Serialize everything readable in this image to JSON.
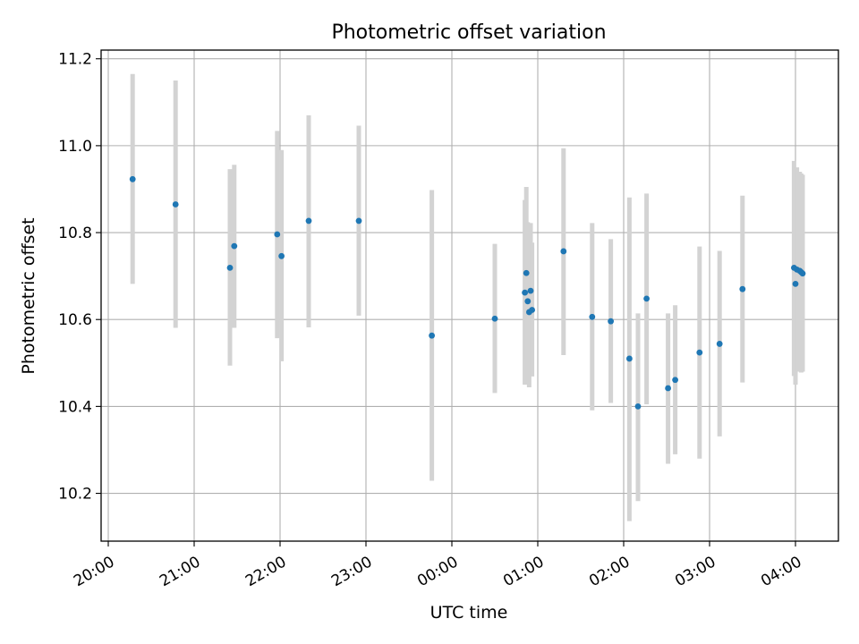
{
  "chart_data": {
    "type": "scatter",
    "title": "Photometric offset variation",
    "xlabel": "UTC time",
    "ylabel": "Photometric offset",
    "x_unit": "UTC time (HH:MM), night spanning midnight",
    "xlim": [
      "19:55",
      "04:30"
    ],
    "ylim": [
      10.09,
      11.22
    ],
    "grid": true,
    "x_ticks": [
      "20:00",
      "21:00",
      "22:00",
      "23:00",
      "00:00",
      "01:00",
      "02:00",
      "03:00",
      "04:00"
    ],
    "y_ticks": [
      "10.2",
      "10.4",
      "10.6",
      "10.8",
      "11.0",
      "11.2"
    ],
    "colors": {
      "point": "#1f77b4",
      "errorbar": "#d3d3d3",
      "grid": "#b0b0b0",
      "axes": "#000000"
    },
    "points": [
      {
        "time": "20:17",
        "y": 10.923,
        "ylow": 10.682,
        "yhigh": 11.165
      },
      {
        "time": "20:47",
        "y": 10.865,
        "ylow": 10.581,
        "yhigh": 11.15
      },
      {
        "time": "21:25",
        "y": 10.719,
        "ylow": 10.494,
        "yhigh": 10.946
      },
      {
        "time": "21:28",
        "y": 10.769,
        "ylow": 10.581,
        "yhigh": 10.956
      },
      {
        "time": "21:58",
        "y": 10.796,
        "ylow": 10.557,
        "yhigh": 11.034
      },
      {
        "time": "22:01",
        "y": 10.746,
        "ylow": 10.504,
        "yhigh": 10.99
      },
      {
        "time": "22:20",
        "y": 10.827,
        "ylow": 10.582,
        "yhigh": 11.07
      },
      {
        "time": "22:55",
        "y": 10.827,
        "ylow": 10.609,
        "yhigh": 11.046
      },
      {
        "time": "23:46",
        "y": 10.563,
        "ylow": 10.229,
        "yhigh": 10.898
      },
      {
        "time": "00:30",
        "y": 10.602,
        "ylow": 10.431,
        "yhigh": 10.774
      },
      {
        "time": "00:51",
        "y": 10.662,
        "ylow": 10.45,
        "yhigh": 10.875
      },
      {
        "time": "00:52",
        "y": 10.707,
        "ylow": 10.508,
        "yhigh": 10.905
      },
      {
        "time": "00:53",
        "y": 10.642,
        "ylow": 10.46,
        "yhigh": 10.824
      },
      {
        "time": "00:54",
        "y": 10.617,
        "ylow": 10.444,
        "yhigh": 10.79
      },
      {
        "time": "00:55",
        "y": 10.666,
        "ylow": 10.51,
        "yhigh": 10.822
      },
      {
        "time": "00:56",
        "y": 10.622,
        "ylow": 10.469,
        "yhigh": 10.777
      },
      {
        "time": "01:18",
        "y": 10.757,
        "ylow": 10.518,
        "yhigh": 10.994
      },
      {
        "time": "01:38",
        "y": 10.606,
        "ylow": 10.391,
        "yhigh": 10.822
      },
      {
        "time": "01:51",
        "y": 10.596,
        "ylow": 10.408,
        "yhigh": 10.785
      },
      {
        "time": "02:04",
        "y": 10.51,
        "ylow": 10.136,
        "yhigh": 10.881
      },
      {
        "time": "02:10",
        "y": 10.4,
        "ylow": 10.182,
        "yhigh": 10.614
      },
      {
        "time": "02:16",
        "y": 10.648,
        "ylow": 10.405,
        "yhigh": 10.89
      },
      {
        "time": "02:31",
        "y": 10.442,
        "ylow": 10.268,
        "yhigh": 10.614
      },
      {
        "time": "02:36",
        "y": 10.461,
        "ylow": 10.29,
        "yhigh": 10.633
      },
      {
        "time": "02:53",
        "y": 10.524,
        "ylow": 10.28,
        "yhigh": 10.768
      },
      {
        "time": "03:07",
        "y": 10.544,
        "ylow": 10.331,
        "yhigh": 10.758
      },
      {
        "time": "03:23",
        "y": 10.67,
        "ylow": 10.455,
        "yhigh": 10.885
      },
      {
        "time": "03:59",
        "y": 10.719,
        "ylow": 10.47,
        "yhigh": 10.965
      },
      {
        "time": "04:00",
        "y": 10.682,
        "ylow": 10.45,
        "yhigh": 10.912
      },
      {
        "time": "04:01",
        "y": 10.715,
        "ylow": 10.48,
        "yhigh": 10.95
      },
      {
        "time": "04:03",
        "y": 10.712,
        "ylow": 10.485,
        "yhigh": 10.94
      },
      {
        "time": "04:04",
        "y": 10.709,
        "ylow": 10.478,
        "yhigh": 10.936
      },
      {
        "time": "04:05",
        "y": 10.706,
        "ylow": 10.48,
        "yhigh": 10.933
      }
    ]
  }
}
